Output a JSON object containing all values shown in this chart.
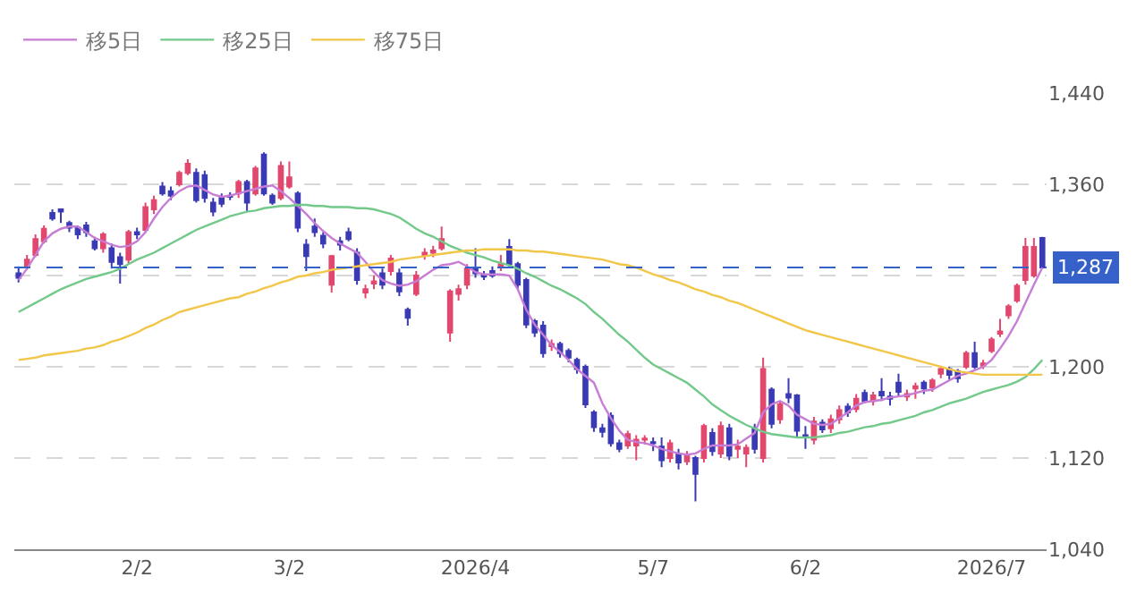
{
  "chart_data": {
    "type": "candlestick",
    "categories": [
      null,
      null,
      null,
      null,
      null,
      null,
      null,
      null,
      null,
      null,
      null,
      null,
      null,
      null,
      "2/2",
      null,
      null,
      null,
      null,
      null,
      null,
      null,
      null,
      null,
      null,
      null,
      null,
      null,
      null,
      null,
      null,
      null,
      "3/2",
      null,
      null,
      null,
      null,
      null,
      null,
      null,
      null,
      null,
      null,
      null,
      null,
      null,
      null,
      null,
      null,
      null,
      null,
      null,
      null,
      null,
      "2026/4",
      null,
      null,
      null,
      null,
      null,
      null,
      null,
      null,
      null,
      null,
      null,
      null,
      null,
      null,
      null,
      null,
      null,
      null,
      null,
      null,
      "5/7",
      null,
      null,
      null,
      null,
      null,
      null,
      null,
      null,
      null,
      null,
      null,
      null,
      null,
      null,
      null,
      null,
      null,
      "6/2",
      null,
      null,
      null,
      null,
      null,
      null,
      null,
      null,
      null,
      null,
      null,
      null,
      null,
      null,
      null,
      null,
      null,
      null,
      null,
      null,
      null,
      "2026/7",
      null,
      null,
      null,
      null,
      null,
      null
    ],
    "ohlc": [
      [
        1282,
        1288,
        1274,
        1278
      ],
      [
        1287,
        1298,
        1285,
        1294
      ],
      [
        1298,
        1316,
        1296,
        1312
      ],
      [
        1310,
        1324,
        1308,
        1321
      ],
      [
        1335,
        1338,
        1328,
        1330
      ],
      [
        1338,
        1338,
        1326,
        1336
      ],
      [
        1326,
        1328,
        1318,
        1322
      ],
      [
        1322,
        1324,
        1312,
        1316
      ],
      [
        1324,
        1327,
        1314,
        1318
      ],
      [
        1310,
        1314,
        1302,
        1304
      ],
      [
        1304,
        1318,
        1300,
        1316
      ],
      [
        1304,
        1308,
        1286,
        1292
      ],
      [
        1296,
        1300,
        1273,
        1290
      ],
      [
        1294,
        1320,
        1290,
        1318
      ],
      [
        1318,
        1322,
        1312,
        1316
      ],
      [
        1320,
        1344,
        1318,
        1340
      ],
      [
        1338,
        1350,
        1334,
        1346
      ],
      [
        1358,
        1362,
        1350,
        1352
      ],
      [
        1354,
        1358,
        1346,
        1350
      ],
      [
        1360,
        1372,
        1358,
        1370
      ],
      [
        1370,
        1382,
        1368,
        1378
      ],
      [
        1370,
        1374,
        1344,
        1346
      ],
      [
        1368,
        1372,
        1344,
        1348
      ],
      [
        1344,
        1348,
        1332,
        1336
      ],
      [
        1348,
        1352,
        1340,
        1343
      ],
      [
        1350,
        1353,
        1346,
        1349
      ],
      [
        1352,
        1364,
        1348,
        1362
      ],
      [
        1362,
        1364,
        1336,
        1344
      ],
      [
        1352,
        1376,
        1350,
        1374
      ],
      [
        1386,
        1388,
        1350,
        1352
      ],
      [
        1350,
        1352,
        1342,
        1344
      ],
      [
        1348,
        1380,
        1346,
        1376
      ],
      [
        1358,
        1380,
        1356,
        1366
      ],
      [
        1352,
        1354,
        1318,
        1322
      ],
      [
        1307,
        1312,
        1284,
        1297
      ],
      [
        1323,
        1330,
        1314,
        1318
      ],
      [
        1315,
        1318,
        1304,
        1308
      ],
      [
        1272,
        1298,
        1265,
        1297
      ],
      [
        1310,
        1314,
        1302,
        1307
      ],
      [
        1318,
        1322,
        1310,
        1312
      ],
      [
        1300,
        1304,
        1272,
        1276
      ],
      [
        1265,
        1272,
        1260,
        1268
      ],
      [
        1273,
        1280,
        1268,
        1275
      ],
      [
        1282,
        1286,
        1268,
        1272
      ],
      [
        1284,
        1298,
        1280,
        1295
      ],
      [
        1282,
        1286,
        1262,
        1266
      ],
      [
        1250,
        1252,
        1236,
        1243
      ],
      [
        1264,
        1284,
        1262,
        1280
      ],
      [
        1298,
        1304,
        1294,
        1300
      ],
      [
        1300,
        1306,
        1296,
        1302
      ],
      [
        1304,
        1323,
        1302,
        1312
      ],
      [
        1230,
        1268,
        1222,
        1266
      ],
      [
        1264,
        1272,
        1258,
        1268
      ],
      [
        1272,
        1290,
        1268,
        1286
      ],
      [
        1286,
        1304,
        1278,
        1282
      ],
      [
        1280,
        1284,
        1276,
        1279
      ],
      [
        1284,
        1288,
        1278,
        1280
      ],
      [
        1288,
        1298,
        1284,
        1290
      ],
      [
        1305,
        1312,
        1288,
        1290
      ],
      [
        1290,
        1292,
        1268,
        1272
      ],
      [
        1276,
        1278,
        1234,
        1237
      ],
      [
        1240,
        1242,
        1226,
        1230
      ],
      [
        1236,
        1240,
        1208,
        1212
      ],
      [
        1218,
        1224,
        1214,
        1220
      ],
      [
        1220,
        1222,
        1208,
        1212
      ],
      [
        1214,
        1216,
        1204,
        1208
      ],
      [
        1206,
        1208,
        1194,
        1198
      ],
      [
        1200,
        1202,
        1164,
        1167
      ],
      [
        1160,
        1162,
        1143,
        1147
      ],
      [
        1146,
        1150,
        1138,
        1143
      ],
      [
        1157,
        1160,
        1130,
        1133
      ],
      [
        1133,
        1136,
        1125,
        1128
      ],
      [
        1131,
        1144,
        1128,
        1141
      ],
      [
        1131,
        1140,
        1118,
        1136
      ],
      [
        1136,
        1140,
        1132,
        1137
      ],
      [
        1134,
        1138,
        1126,
        1133
      ],
      [
        1130,
        1138,
        1112,
        1118
      ],
      [
        1120,
        1136,
        1116,
        1133
      ],
      [
        1124,
        1128,
        1110,
        1116
      ],
      [
        1117,
        1126,
        1114,
        1123
      ],
      [
        1120,
        1122,
        1082,
        1106
      ],
      [
        1120,
        1150,
        1116,
        1148
      ],
      [
        1142,
        1146,
        1122,
        1126
      ],
      [
        1124,
        1152,
        1120,
        1148
      ],
      [
        1146,
        1150,
        1118,
        1122
      ],
      [
        1128,
        1136,
        1120,
        1130
      ],
      [
        1124,
        1132,
        1112,
        1129
      ],
      [
        1146,
        1150,
        1124,
        1128
      ],
      [
        1120,
        1208,
        1116,
        1198
      ],
      [
        1180,
        1182,
        1146,
        1150
      ],
      [
        1154,
        1170,
        1150,
        1167
      ],
      [
        1176,
        1190,
        1168,
        1173
      ],
      [
        1175,
        1176,
        1138,
        1144
      ],
      [
        1140,
        1148,
        1128,
        1138
      ],
      [
        1136,
        1156,
        1132,
        1152
      ],
      [
        1151,
        1154,
        1142,
        1145
      ],
      [
        1146,
        1158,
        1142,
        1154
      ],
      [
        1154,
        1166,
        1150,
        1162
      ],
      [
        1165,
        1168,
        1156,
        1160
      ],
      [
        1163,
        1176,
        1160,
        1172
      ],
      [
        1177,
        1180,
        1168,
        1170
      ],
      [
        1170,
        1178,
        1166,
        1175
      ],
      [
        1178,
        1190,
        1170,
        1175
      ],
      [
        1174,
        1178,
        1166,
        1172
      ],
      [
        1186,
        1194,
        1174,
        1178
      ],
      [
        1174,
        1180,
        1170,
        1176
      ],
      [
        1181,
        1186,
        1172,
        1183
      ],
      [
        1186,
        1188,
        1176,
        1181
      ],
      [
        1182,
        1190,
        1178,
        1188
      ],
      [
        1194,
        1200,
        1190,
        1198
      ],
      [
        1198,
        1200,
        1188,
        1193
      ],
      [
        1196,
        1198,
        1186,
        1190
      ],
      [
        1200,
        1214,
        1198,
        1212
      ],
      [
        1212,
        1222,
        1198,
        1200
      ],
      [
        1201,
        1206,
        1198,
        1203
      ],
      [
        1214,
        1226,
        1212,
        1224
      ],
      [
        1229,
        1242,
        1226,
        1231
      ],
      [
        1245,
        1255,
        1242,
        1253
      ],
      [
        1258,
        1273,
        1256,
        1271
      ],
      [
        1276,
        1313,
        1272,
        1305
      ],
      [
        1280,
        1313,
        1278,
        1305
      ],
      [
        1313,
        1314,
        1286,
        1287
      ]
    ],
    "colors": [
      "#3a3ab4",
      "#e2476e",
      "#e2476e",
      "#e2476e",
      "#3a3ab4",
      "#3a3ab4",
      "#3a3ab4",
      "#3a3ab4",
      "#3a3ab4",
      "#3a3ab4",
      "#e2476e",
      "#3a3ab4",
      "#3a3ab4",
      "#e2476e",
      "#3a3ab4",
      "#e2476e",
      "#e2476e",
      "#3a3ab4",
      "#3a3ab4",
      "#e2476e",
      "#e2476e",
      "#3a3ab4",
      "#3a3ab4",
      "#3a3ab4",
      "#3a3ab4",
      "#3a3ab4",
      "#e2476e",
      "#3a3ab4",
      "#e2476e",
      "#3a3ab4",
      "#3a3ab4",
      "#e2476e",
      "#e2476e",
      "#3a3ab4",
      "#3a3ab4",
      "#3a3ab4",
      "#3a3ab4",
      "#e2476e",
      "#3a3ab4",
      "#3a3ab4",
      "#3a3ab4",
      "#e2476e",
      "#e2476e",
      "#3a3ab4",
      "#e2476e",
      "#3a3ab4",
      "#3a3ab4",
      "#e2476e",
      "#e2476e",
      "#e2476e",
      "#e2476e",
      "#e2476e",
      "#e2476e",
      "#e2476e",
      "#3a3ab4",
      "#3a3ab4",
      "#3a3ab4",
      "#e2476e",
      "#3a3ab4",
      "#3a3ab4",
      "#3a3ab4",
      "#3a3ab4",
      "#3a3ab4",
      "#e2476e",
      "#3a3ab4",
      "#3a3ab4",
      "#3a3ab4",
      "#3a3ab4",
      "#3a3ab4",
      "#3a3ab4",
      "#3a3ab4",
      "#3a3ab4",
      "#e2476e",
      "#e2476e",
      "#e2476e",
      "#3a3ab4",
      "#3a3ab4",
      "#e2476e",
      "#3a3ab4",
      "#e2476e",
      "#3a3ab4",
      "#e2476e",
      "#3a3ab4",
      "#e2476e",
      "#3a3ab4",
      "#e2476e",
      "#e2476e",
      "#3a3ab4",
      "#e2476e",
      "#3a3ab4",
      "#e2476e",
      "#3a3ab4",
      "#3a3ab4",
      "#3a3ab4",
      "#e2476e",
      "#3a3ab4",
      "#e2476e",
      "#e2476e",
      "#3a3ab4",
      "#e2476e",
      "#3a3ab4",
      "#e2476e",
      "#3a3ab4",
      "#3a3ab4",
      "#3a3ab4",
      "#e2476e",
      "#e2476e",
      "#3a3ab4",
      "#e2476e",
      "#e2476e",
      "#3a3ab4",
      "#3a3ab4",
      "#e2476e",
      "#3a3ab4",
      "#e2476e",
      "#e2476e",
      "#e2476e",
      "#e2476e",
      "#e2476e",
      "#e2476e",
      "#e2476e",
      "#3a3ab4"
    ],
    "series": [
      {
        "type": "line",
        "name": "移5日",
        "color": "#c77dd6",
        "values": [
          1276,
          1286,
          1298,
          1310,
          1317,
          1321,
          1323,
          1323,
          1318,
          1313,
          1310,
          1307,
          1305,
          1306,
          1310,
          1318,
          1330,
          1340,
          1348,
          1354,
          1358,
          1359,
          1355,
          1351,
          1349,
          1350,
          1352,
          1354,
          1356,
          1358,
          1359,
          1354,
          1348,
          1341,
          1334,
          1326,
          1319,
          1313,
          1308,
          1304,
          1300,
          1292,
          1283,
          1276,
          1273,
          1271,
          1272,
          1275,
          1280,
          1285,
          1289,
          1290,
          1292,
          1288,
          1283,
          1281,
          1281,
          1281,
          1280,
          1268,
          1250,
          1237,
          1228,
          1219,
          1213,
          1206,
          1198,
          1192,
          1186,
          1168,
          1155,
          1144,
          1136,
          1134,
          1133,
          1131,
          1128,
          1126,
          1124,
          1123,
          1124,
          1128,
          1131,
          1131,
          1131,
          1132,
          1137,
          1142,
          1160,
          1167,
          1170,
          1166,
          1158,
          1154,
          1150,
          1149,
          1150,
          1155,
          1160,
          1166,
          1169,
          1170,
          1171,
          1173,
          1174,
          1175,
          1177,
          1179,
          1180,
          1184,
          1188,
          1192,
          1194,
          1197,
          1200,
          1206,
          1216,
          1227,
          1240,
          1256,
          1272,
          1287
        ]
      },
      {
        "type": "line",
        "name": "移25日",
        "color": "#72c98a",
        "values": [
          1248,
          1252,
          1256,
          1260,
          1264,
          1268,
          1271,
          1274,
          1277,
          1279,
          1281,
          1283,
          1286,
          1290,
          1294,
          1297,
          1300,
          1304,
          1308,
          1312,
          1316,
          1320,
          1323,
          1326,
          1329,
          1332,
          1334,
          1336,
          1337,
          1339,
          1340,
          1341,
          1341,
          1342,
          1342,
          1341,
          1341,
          1340,
          1340,
          1340,
          1339,
          1339,
          1338,
          1336,
          1334,
          1331,
          1326,
          1321,
          1317,
          1314,
          1310,
          1306,
          1303,
          1300,
          1298,
          1296,
          1293,
          1291,
          1289,
          1286,
          1282,
          1279,
          1275,
          1271,
          1268,
          1264,
          1260,
          1255,
          1248,
          1242,
          1235,
          1228,
          1222,
          1215,
          1208,
          1202,
          1198,
          1194,
          1190,
          1186,
          1180,
          1174,
          1167,
          1162,
          1157,
          1153,
          1149,
          1146,
          1143,
          1141,
          1140,
          1139,
          1138,
          1138,
          1138,
          1139,
          1140,
          1142,
          1143,
          1145,
          1147,
          1148,
          1150,
          1151,
          1153,
          1155,
          1157,
          1160,
          1162,
          1165,
          1168,
          1170,
          1172,
          1175,
          1178,
          1180,
          1182,
          1184,
          1187,
          1191,
          1198,
          1206
        ]
      },
      {
        "type": "line",
        "name": "移75日",
        "color": "#f2c649",
        "values": [
          1206,
          1207,
          1208,
          1210,
          1211,
          1212,
          1213,
          1214,
          1216,
          1217,
          1219,
          1222,
          1224,
          1227,
          1230,
          1234,
          1237,
          1241,
          1244,
          1248,
          1250,
          1252,
          1254,
          1256,
          1258,
          1260,
          1261,
          1264,
          1266,
          1269,
          1271,
          1274,
          1276,
          1279,
          1280,
          1282,
          1283,
          1285,
          1286,
          1287,
          1288,
          1289,
          1290,
          1291,
          1292,
          1294,
          1295,
          1296,
          1297,
          1298,
          1299,
          1300,
          1301,
          1302,
          1302,
          1303,
          1303,
          1303,
          1303,
          1302,
          1302,
          1301,
          1301,
          1300,
          1299,
          1298,
          1297,
          1296,
          1295,
          1294,
          1292,
          1290,
          1289,
          1287,
          1284,
          1281,
          1279,
          1276,
          1274,
          1271,
          1268,
          1266,
          1263,
          1261,
          1258,
          1256,
          1253,
          1250,
          1247,
          1244,
          1241,
          1238,
          1235,
          1232,
          1230,
          1228,
          1226,
          1224,
          1222,
          1220,
          1218,
          1216,
          1214,
          1212,
          1210,
          1208,
          1206,
          1204,
          1202,
          1200,
          1198,
          1196,
          1195,
          1194,
          1193,
          1193,
          1193,
          1193,
          1193,
          1193,
          1193,
          1193
        ]
      }
    ],
    "ylim": [
      1040,
      1440
    ],
    "yticks": [
      {
        "value": 1040,
        "label": "1,040"
      },
      {
        "value": 1120,
        "label": "1,120"
      },
      {
        "value": 1200,
        "label": "1,200"
      },
      {
        "value": 1280,
        "label": null
      },
      {
        "value": 1360,
        "label": "1,360"
      },
      {
        "value": 1440,
        "label": "1,440"
      }
    ],
    "grid": "y",
    "legend": "top left",
    "ref_lines": [
      {
        "axis": "y",
        "value": 1287,
        "label": "1,287",
        "color": "#3561c9",
        "line_style": "dashed"
      }
    ]
  }
}
